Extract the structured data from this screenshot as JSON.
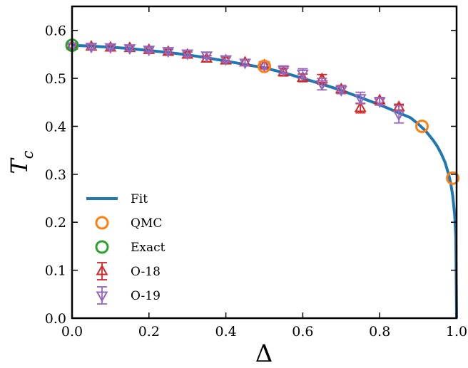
{
  "chart_data": {
    "type": "scatter",
    "xlabel": "Δ",
    "ylabel": "T",
    "ylabel_sub": "c",
    "xlim": [
      0.0,
      1.0
    ],
    "ylim": [
      0.0,
      0.65
    ],
    "xticks": [
      0.0,
      0.2,
      0.4,
      0.6,
      0.8,
      1.0
    ],
    "xtick_labels": [
      "0.0",
      "0.2",
      "0.4",
      "0.6",
      "0.8",
      "1.0"
    ],
    "yticks": [
      0.0,
      0.1,
      0.2,
      0.3,
      0.4,
      0.5,
      0.6
    ],
    "ytick_labels": [
      "0.0",
      "0.1",
      "0.2",
      "0.3",
      "0.4",
      "0.5",
      "0.6"
    ],
    "grid": false,
    "legend_position": "lower-left",
    "series": [
      {
        "name": "Fit",
        "kind": "line",
        "color": "#1f77b4",
        "x": [
          0.0,
          0.05,
          0.1,
          0.15,
          0.2,
          0.25,
          0.3,
          0.35,
          0.4,
          0.45,
          0.5,
          0.55,
          0.6,
          0.65,
          0.7,
          0.75,
          0.8,
          0.85,
          0.88,
          0.9,
          0.92,
          0.94,
          0.95,
          0.96,
          0.97,
          0.98,
          0.985,
          0.99,
          0.995,
          0.998,
          1.0
        ],
        "y": [
          0.569,
          0.567,
          0.565,
          0.562,
          0.558,
          0.554,
          0.549,
          0.543,
          0.536,
          0.529,
          0.522,
          0.512,
          0.5,
          0.488,
          0.475,
          0.46,
          0.445,
          0.428,
          0.418,
          0.405,
          0.39,
          0.37,
          0.358,
          0.343,
          0.325,
          0.298,
          0.28,
          0.255,
          0.215,
          0.17,
          0.0
        ]
      },
      {
        "name": "QMC",
        "kind": "circle",
        "color": "#ff7f0e",
        "x": [
          0.5,
          0.91,
          0.99
        ],
        "y": [
          0.525,
          0.4,
          0.292
        ]
      },
      {
        "name": "Exact",
        "kind": "circle",
        "color": "#2ca02c",
        "x": [
          0.0
        ],
        "y": [
          0.569
        ]
      },
      {
        "name": "O-18",
        "kind": "triangle-up",
        "color": "#d62728",
        "x": [
          0.0,
          0.05,
          0.1,
          0.15,
          0.2,
          0.25,
          0.3,
          0.35,
          0.4,
          0.45,
          0.5,
          0.55,
          0.6,
          0.65,
          0.7,
          0.75,
          0.8,
          0.85
        ],
        "y": [
          0.568,
          0.566,
          0.564,
          0.563,
          0.559,
          0.555,
          0.549,
          0.541,
          0.537,
          0.533,
          0.527,
          0.513,
          0.501,
          0.498,
          0.477,
          0.438,
          0.454,
          0.44
        ],
        "yerr": [
          0.005,
          0.005,
          0.005,
          0.005,
          0.005,
          0.005,
          0.006,
          0.006,
          0.006,
          0.006,
          0.006,
          0.008,
          0.008,
          0.01,
          0.008,
          0.01,
          0.006,
          0.006
        ]
      },
      {
        "name": "O-19",
        "kind": "triangle-down",
        "color": "#9467bd",
        "x": [
          0.0,
          0.05,
          0.1,
          0.15,
          0.2,
          0.25,
          0.3,
          0.35,
          0.4,
          0.45,
          0.5,
          0.55,
          0.6,
          0.65,
          0.7,
          0.75,
          0.8,
          0.85
        ],
        "y": [
          0.567,
          0.566,
          0.565,
          0.563,
          0.56,
          0.557,
          0.552,
          0.548,
          0.54,
          0.533,
          0.527,
          0.518,
          0.51,
          0.488,
          0.476,
          0.459,
          0.452,
          0.425
        ],
        "yerr": [
          0.005,
          0.005,
          0.005,
          0.005,
          0.005,
          0.005,
          0.006,
          0.006,
          0.006,
          0.006,
          0.008,
          0.008,
          0.01,
          0.012,
          0.008,
          0.012,
          0.008,
          0.018
        ]
      }
    ]
  }
}
